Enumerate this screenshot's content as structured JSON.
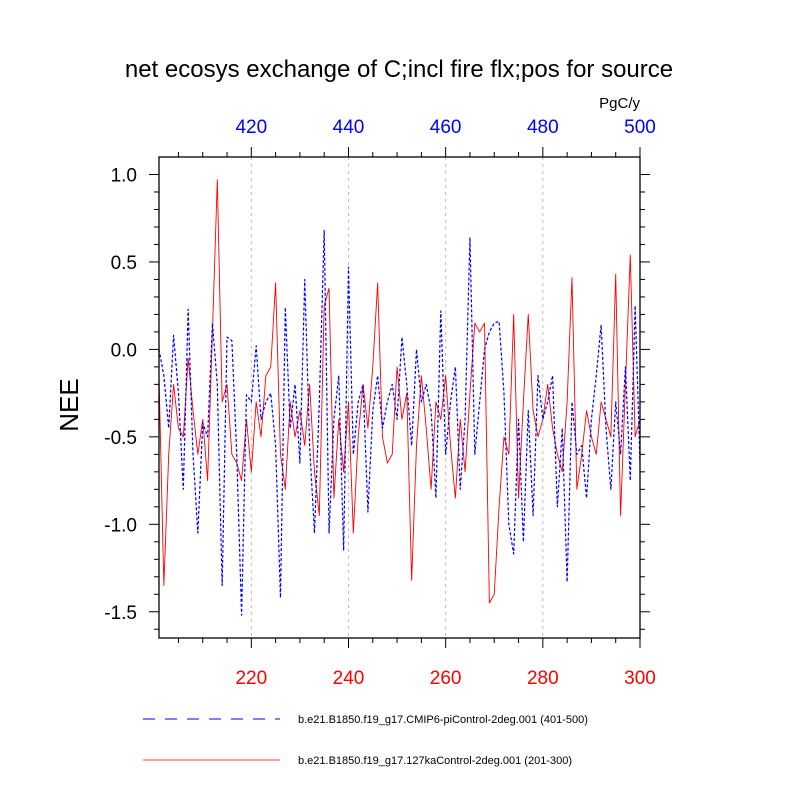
{
  "chart_data": {
    "type": "line",
    "title": "net ecosys exchange of C;incl fire flx;pos for source",
    "units_label": "PgC/y",
    "ylabel": "NEE",
    "xlabel": "",
    "ylim": [
      -1.65,
      1.1
    ],
    "grid": "vertical dashed at x ticks",
    "y_ticks": [
      1.0,
      0.5,
      0.0,
      -0.5,
      -1.0,
      -1.5
    ],
    "y_tick_labels": [
      "1.0",
      "0.5",
      "0.0",
      "-0.5",
      "-1.0",
      "-1.5"
    ],
    "bottom_axis": {
      "color": "#ff0000",
      "range": [
        201,
        300
      ],
      "ticks": [
        220,
        240,
        260,
        280,
        300
      ],
      "tick_labels": [
        "220",
        "240",
        "260",
        "280",
        "300"
      ]
    },
    "top_axis": {
      "color": "#0000ff",
      "range": [
        401,
        500
      ],
      "ticks": [
        420,
        440,
        460,
        480,
        500
      ],
      "tick_labels": [
        "420",
        "440",
        "460",
        "480",
        "500"
      ]
    },
    "series": [
      {
        "name": "b.e21.B1850.f19_g17.CMIP6-piControl-2deg.001 (401-500)",
        "axis": "top",
        "color": "#0000ff",
        "style": "dashed",
        "x_start": 401,
        "values": [
          0.0,
          -0.15,
          -0.45,
          0.08,
          -0.25,
          -0.8,
          0.23,
          -0.6,
          -1.05,
          -0.42,
          -0.5,
          0.15,
          -0.2,
          -1.35,
          0.07,
          0.05,
          -0.6,
          -1.52,
          -0.26,
          -0.3,
          0.02,
          -0.4,
          -0.3,
          -0.25,
          -0.55,
          -1.42,
          0.24,
          -0.45,
          -0.2,
          -0.65,
          0.4,
          -0.55,
          -1.05,
          -0.3,
          0.68,
          -1.05,
          -0.4,
          -0.15,
          -1.15,
          0.47,
          -0.6,
          -0.3,
          -0.2,
          -0.93,
          -0.35,
          -0.15,
          -0.45,
          -0.3,
          -0.2,
          -0.4,
          0.07,
          -0.2,
          -0.55,
          0.0,
          -0.3,
          -0.2,
          -0.35,
          -0.85,
          0.22,
          -0.6,
          -0.3,
          -0.1,
          -0.8,
          -0.4,
          0.64,
          -0.6,
          -0.3,
          0.0,
          0.1,
          0.15,
          0.16,
          -0.25,
          -1.0,
          -1.17,
          -0.4,
          -1.1,
          -0.35,
          -0.95,
          -0.15,
          -0.4,
          -0.3,
          -0.15,
          -0.9,
          -0.45,
          -1.33,
          -0.3,
          -0.6,
          -0.55,
          -0.85,
          -0.4,
          -0.15,
          0.14,
          -0.45,
          -0.8,
          -0.3,
          -0.6,
          -0.1,
          -0.75,
          0.25,
          -0.65
        ]
      },
      {
        "name": "b.e21.B1850.f19_g17.127kaControl-2deg.001 (201-300)",
        "axis": "bottom",
        "color": "#ff0000",
        "style": "solid",
        "x_start": 201,
        "values": [
          -0.15,
          -1.35,
          -0.6,
          -0.2,
          -0.45,
          -0.5,
          -0.05,
          -0.35,
          -0.6,
          -0.4,
          -0.75,
          0.1,
          0.97,
          -0.3,
          -0.2,
          -0.6,
          -0.65,
          -0.75,
          -0.4,
          -0.7,
          -0.3,
          -0.5,
          -0.15,
          -0.1,
          0.38,
          -0.6,
          -0.8,
          -0.3,
          -0.5,
          -0.35,
          -0.55,
          -0.2,
          -0.7,
          -0.95,
          0.25,
          0.35,
          -0.85,
          -0.4,
          -0.7,
          -0.3,
          -1.05,
          -0.5,
          -0.2,
          -0.45,
          -0.1,
          0.38,
          -0.5,
          -0.65,
          -0.6,
          -0.1,
          -0.4,
          -0.25,
          -1.32,
          -0.55,
          -0.15,
          -0.45,
          -0.8,
          -0.3,
          -0.4,
          -0.15,
          -0.55,
          -0.85,
          -0.4,
          -0.7,
          -0.25,
          0.15,
          0.1,
          0.15,
          -1.45,
          -1.4,
          -0.9,
          -0.5,
          -0.6,
          0.2,
          -0.85,
          -0.3,
          0.2,
          -0.35,
          -0.5,
          -0.4,
          -0.2,
          -0.45,
          -0.6,
          -0.7,
          -0.3,
          0.41,
          -0.8,
          -0.6,
          -0.35,
          -0.5,
          -0.6,
          -0.3,
          -0.4,
          -0.5,
          0.43,
          -0.95,
          -0.2,
          0.54,
          -0.5,
          -0.4
        ]
      }
    ]
  }
}
